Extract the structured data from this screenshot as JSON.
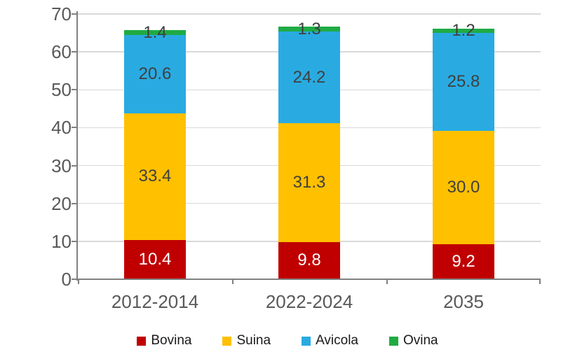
{
  "chart_data": {
    "type": "bar",
    "stacked": true,
    "title": "",
    "xlabel": "",
    "ylabel": "",
    "categories": [
      "2012-2014",
      "2022-2024",
      "2035"
    ],
    "series": [
      {
        "name": "Bovina",
        "color": "#C00000",
        "label_color": "#FFFFFF",
        "values": [
          10.4,
          9.8,
          9.2
        ],
        "labels": [
          "10.4",
          "9.8",
          "9.2"
        ]
      },
      {
        "name": "Suina",
        "color": "#FFC000",
        "label_color": "#3F3F3F",
        "values": [
          33.4,
          31.3,
          30.0
        ],
        "labels": [
          "33.4",
          "31.3",
          "30.0"
        ]
      },
      {
        "name": "Avicola",
        "color": "#29ABE2",
        "label_color": "#3F3F3F",
        "values": [
          20.6,
          24.2,
          25.8
        ],
        "labels": [
          "20.6",
          "24.2",
          "25.8"
        ]
      },
      {
        "name": "Ovina",
        "color": "#1FAB44",
        "label_color": "#3F3F3F",
        "values": [
          1.4,
          1.3,
          1.2
        ],
        "labels": [
          "1.4",
          "1.3",
          "1.2"
        ]
      }
    ],
    "ylim": [
      0,
      70
    ],
    "ytick_step": 10,
    "ytick_labels": [
      "0",
      "10",
      "20",
      "30",
      "40",
      "50",
      "60",
      "70"
    ],
    "grid": true,
    "legend_position": "bottom",
    "colors": {
      "axis": "#808080",
      "gridline": "#D9D9D9",
      "axis_label": "#595959",
      "value_label_dark": "#3F3F3F",
      "legend_text": "#1A1A1A",
      "background": "#FFFFFF"
    }
  }
}
